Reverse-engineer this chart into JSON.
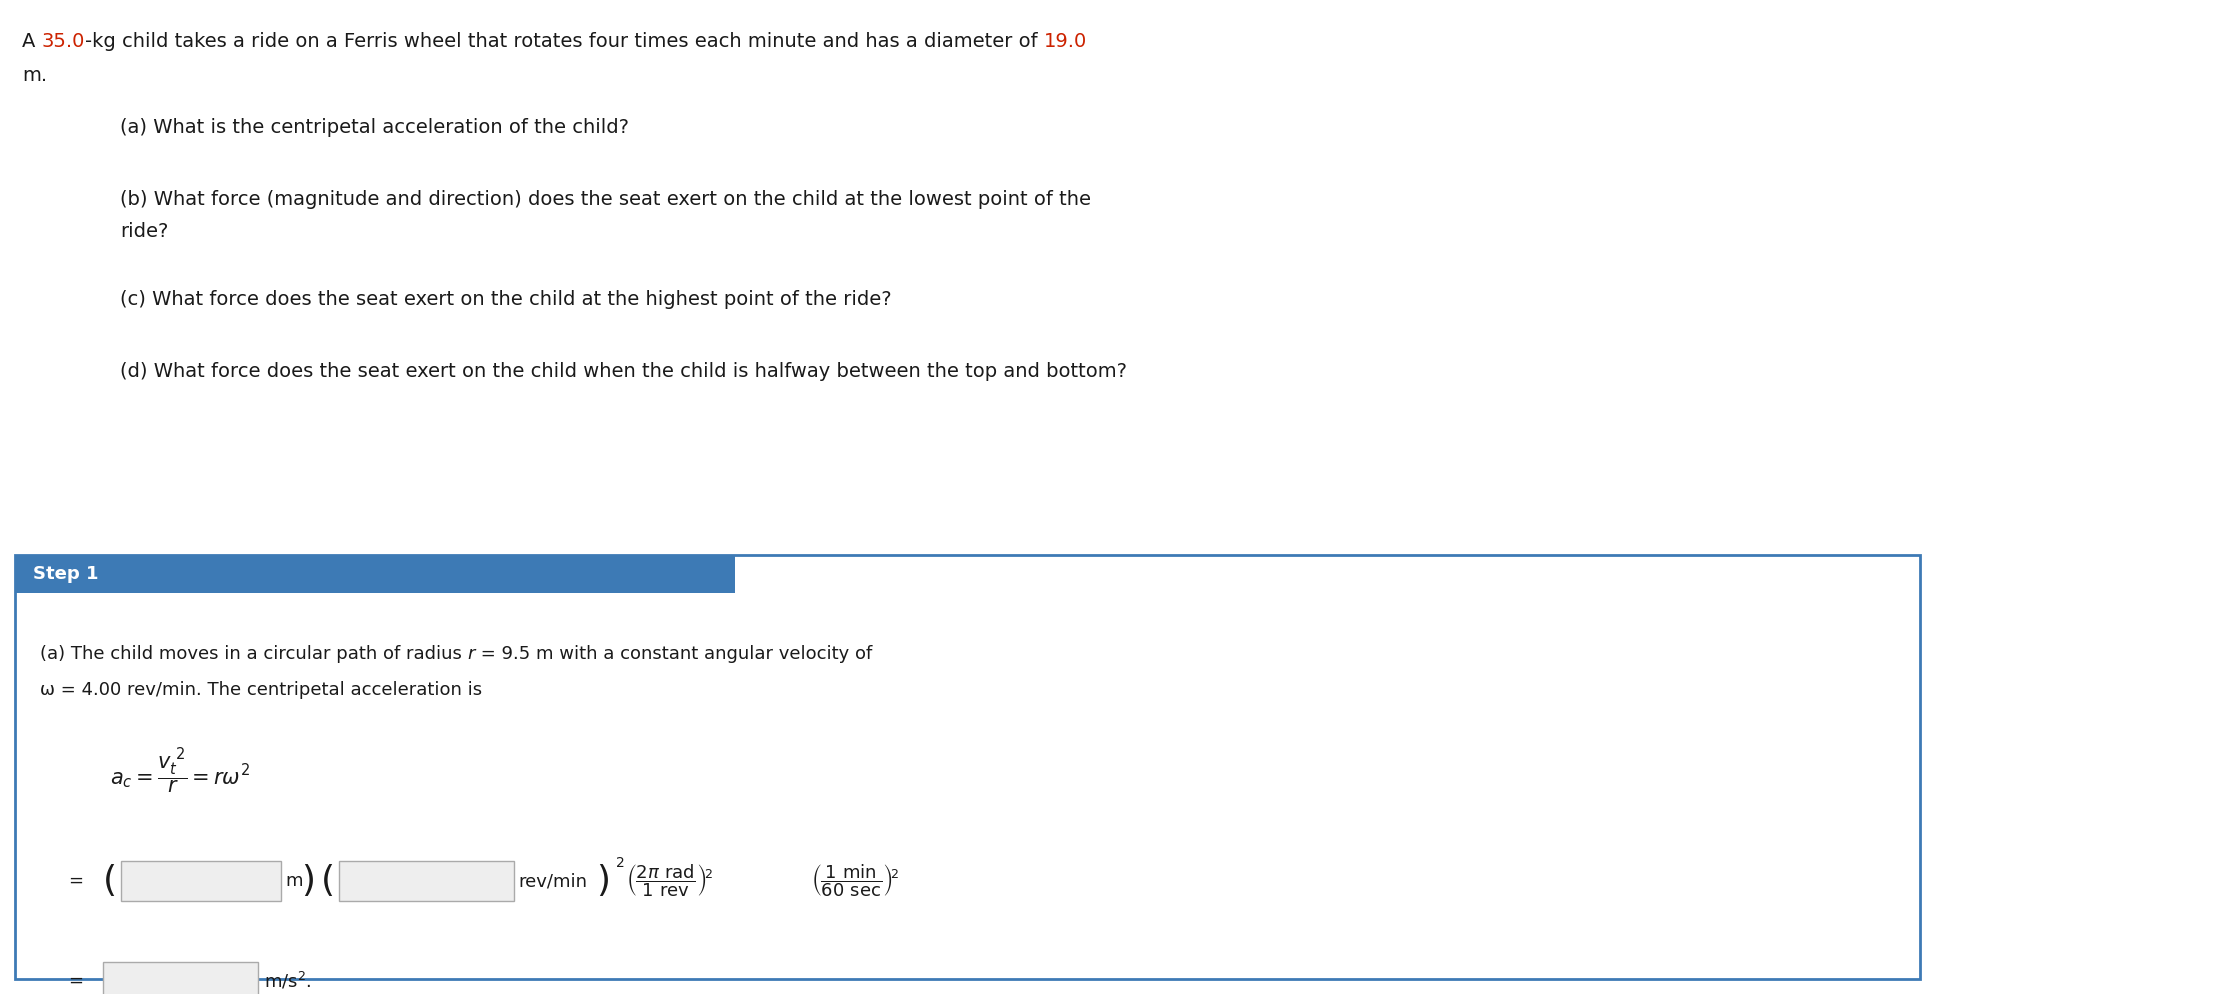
{
  "bg_color": "#ffffff",
  "fig_width": 22.22,
  "fig_height": 9.94,
  "dpi": 100,
  "line1_parts": [
    {
      "text": "A ",
      "color": "#1a1a1a"
    },
    {
      "text": "35.0",
      "color": "#cc2200"
    },
    {
      "text": "-kg child takes a ride on a Ferris wheel that rotates four times each minute and has a diameter of ",
      "color": "#1a1a1a"
    },
    {
      "text": "19.0",
      "color": "#cc2200"
    }
  ],
  "line2": "m.",
  "question_a": "(a) What is the centripetal acceleration of the child?",
  "question_b1": "(b) What force (magnitude and direction) does the seat exert on the child at the lowest point of the",
  "question_b2": "ride?",
  "question_c": "(c) What force does the seat exert on the child at the highest point of the ride?",
  "question_d": "(d) What force does the seat exert on the child when the child is halfway between the top and bottom?",
  "step1_label": "Step 1",
  "step1_header_bg": "#3d7ab5",
  "step1_header_text_color": "#ffffff",
  "step1_box_border": "#3d7ab5",
  "step1_box_bg": "#ffffff",
  "step_line1a": "(a) The child moves in a circular path of radius ",
  "step_line1b": "r",
  "step_line1c": " = 9.5 m with a constant angular velocity of",
  "step_line2": "ω = 4.00 rev/min. The centripetal acceleration is",
  "font_size_main": 14,
  "font_size_step": 13,
  "font_size_formula": 14,
  "font_family": "DejaVu Sans"
}
